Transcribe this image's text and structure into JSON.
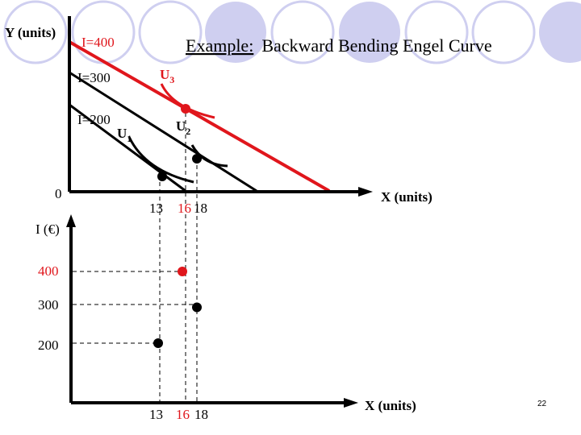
{
  "title": {
    "underlined": "Example:",
    "rest": "Backward Bending Engel Curve"
  },
  "top_graph": {
    "y_axis_label": "Y (units)",
    "x_axis_label": "X (units)",
    "origin_label": "0",
    "budget_labels": [
      "I=400",
      "I=300",
      "I=200"
    ],
    "utility_labels": {
      "u1": {
        "base": "U",
        "sub": "1"
      },
      "u2": {
        "base": "U",
        "sub": "2"
      },
      "u3": {
        "base": "U",
        "sub": "3"
      }
    },
    "x_ticks": [
      "13",
      "16",
      "18"
    ]
  },
  "bottom_graph": {
    "y_axis_label": "I (€)",
    "x_axis_label": "X (units)",
    "y_ticks": [
      "400",
      "300",
      "200"
    ],
    "x_ticks": [
      "13",
      "16",
      "18"
    ],
    "points": [
      {
        "x": 13,
        "income": 200,
        "color": "#000000"
      },
      {
        "x": 16,
        "income": 400,
        "color": "#e0161c"
      },
      {
        "x": 18,
        "income": 300,
        "color": "#000000"
      }
    ]
  },
  "colors": {
    "highlight": "#e0161c",
    "circles": "#cfcff0"
  },
  "slide_number": "22"
}
